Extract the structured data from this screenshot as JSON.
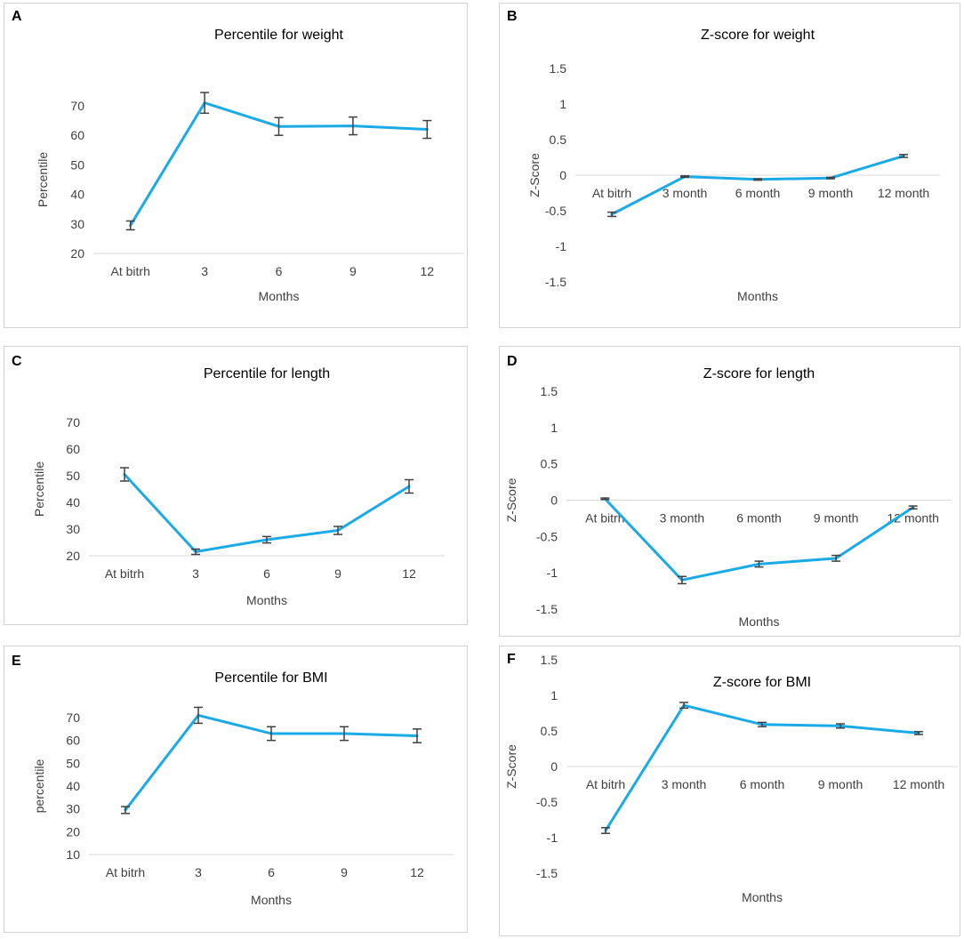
{
  "colors": {
    "line": "#1aaae6",
    "error_bar": "#404040",
    "axis": "#d9d9d9",
    "text": "#404040",
    "title": "#000000"
  },
  "chart_data": [
    {
      "panel": "A",
      "type": "line",
      "title": "Percentile for weight",
      "xlabel": "Months",
      "ylabel": "Percentile",
      "categories": [
        "At bitrh",
        "3",
        "6",
        "9",
        "12"
      ],
      "values": [
        29.5,
        71,
        63,
        63.2,
        62
      ],
      "errors": [
        1.5,
        3.5,
        3,
        3,
        3
      ],
      "ylim": [
        20,
        70
      ],
      "yticks": [
        20,
        30,
        40,
        50,
        60,
        70
      ],
      "tick_labels": [
        "20",
        "30",
        "40",
        "50",
        "60",
        "70"
      ],
      "axis_at": 20,
      "xlabels_position": "below-axis"
    },
    {
      "panel": "B",
      "type": "line",
      "title": "Z-score for weight",
      "xlabel": "Months",
      "ylabel": "Z-Score",
      "categories": [
        "At bitrh",
        "3 month",
        "6 month",
        "9 month",
        "12 month"
      ],
      "values": [
        -0.55,
        -0.02,
        -0.06,
        -0.04,
        0.27
      ],
      "errors": [
        0.03,
        0.01,
        0.01,
        0.01,
        0.02
      ],
      "ylim": [
        -1.5,
        1.5
      ],
      "yticks": [
        -1.5,
        -1,
        -0.5,
        0,
        0.5,
        1,
        1.5
      ],
      "tick_labels": [
        "-1.5",
        "-1",
        "-0.5",
        "0",
        "0.5",
        "1",
        "1.5"
      ],
      "axis_at": 0,
      "xlabels_position": "below-axis"
    },
    {
      "panel": "C",
      "type": "line",
      "title": "Percentile for length",
      "xlabel": "Months",
      "ylabel": "Percentile",
      "categories": [
        "At bitrh",
        "3",
        "6",
        "9",
        "12"
      ],
      "values": [
        50.5,
        21.5,
        26,
        29.5,
        46
      ],
      "errors": [
        2.5,
        1,
        1.2,
        1.5,
        2.5
      ],
      "ylim": [
        20,
        70
      ],
      "yticks": [
        20,
        30,
        40,
        50,
        60,
        70
      ],
      "tick_labels": [
        "20",
        "30",
        "40",
        "50",
        "60",
        "70"
      ],
      "axis_at": 20,
      "xlabels_position": "below-axis"
    },
    {
      "panel": "D",
      "type": "line",
      "title": "Z-score for length",
      "xlabel": "Months",
      "ylabel": "Z-Score",
      "categories": [
        "At bitrh",
        "3 month",
        "6 month",
        "9 month",
        "12 month"
      ],
      "values": [
        0.02,
        -1.1,
        -0.88,
        -0.8,
        -0.1
      ],
      "errors": [
        0.01,
        0.05,
        0.04,
        0.04,
        0.02
      ],
      "ylim": [
        -1.5,
        1.5
      ],
      "yticks": [
        -1.5,
        -1,
        -0.5,
        0,
        0.5,
        1,
        1.5
      ],
      "tick_labels": [
        "-1.5",
        "-1",
        "-0.5",
        "0",
        "0.5",
        "1",
        "1.5"
      ],
      "axis_at": 0,
      "xlabels_position": "below-axis"
    },
    {
      "panel": "E",
      "type": "line",
      "title": "Percentile for BMI",
      "xlabel": "Months",
      "ylabel": "percentile",
      "categories": [
        "At bitrh",
        "3",
        "6",
        "9",
        "12"
      ],
      "values": [
        29.5,
        71,
        63,
        63,
        62
      ],
      "errors": [
        1.5,
        3.5,
        3,
        3,
        3
      ],
      "ylim": [
        10,
        70
      ],
      "yticks": [
        10,
        20,
        30,
        40,
        50,
        60,
        70
      ],
      "tick_labels": [
        "10",
        "20",
        "30",
        "40",
        "50",
        "60",
        "70"
      ],
      "axis_at": 10,
      "xlabels_position": "below-axis"
    },
    {
      "panel": "F",
      "type": "line",
      "title": "Z-score for BMI",
      "xlabel": "Months",
      "ylabel": "Z-Score",
      "categories": [
        "At bitrh",
        "3 month",
        "6 month",
        "9 month",
        "12 month"
      ],
      "values": [
        -0.9,
        0.86,
        0.59,
        0.57,
        0.47
      ],
      "errors": [
        0.04,
        0.04,
        0.03,
        0.03,
        0.02
      ],
      "ylim": [
        -1.5,
        1.5
      ],
      "yticks": [
        -1.5,
        -1,
        -0.5,
        0,
        0.5,
        1,
        1.5
      ],
      "tick_labels": [
        "-1.5",
        "-1",
        "-0.5",
        "0",
        "0.5",
        "1",
        "1.5"
      ],
      "axis_at": 0,
      "xlabels_position": "below-axis"
    }
  ]
}
